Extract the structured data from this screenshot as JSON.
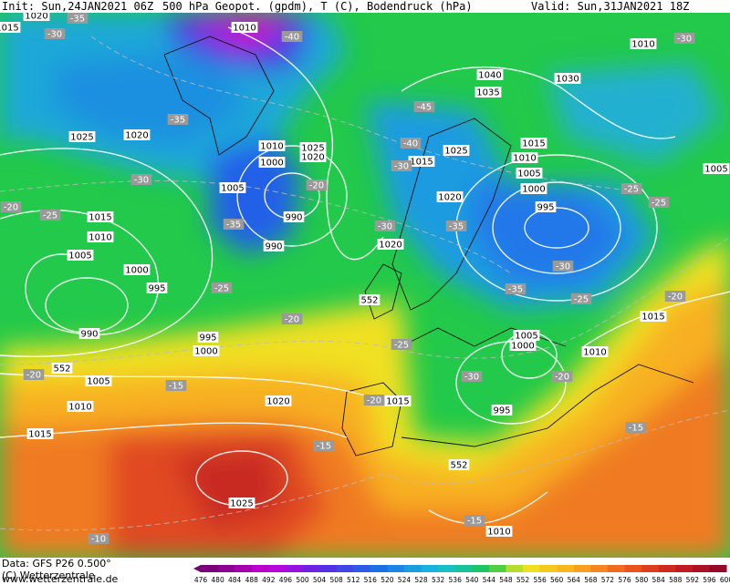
{
  "header": {
    "init": "Init: Sun,24JAN2021 06Z",
    "title": "500 hPa Geopot. (gpdm), T (C), Bodendruck (hPa)",
    "valid": "Valid: Sun,31JAN2021 18Z"
  },
  "footer": {
    "data": "Data: GFS P26 0.500°",
    "copyright": "(C) Wetterzentrale",
    "url": "www.wetterzentrale.de"
  },
  "colorbar": {
    "labels": [
      476,
      480,
      484,
      488,
      492,
      496,
      500,
      504,
      508,
      512,
      516,
      520,
      524,
      528,
      532,
      536,
      540,
      544,
      548,
      552,
      556,
      560,
      564,
      568,
      572,
      576,
      580,
      584,
      588,
      592,
      596,
      600
    ]
  },
  "map": {
    "pressure_labels": [
      1010,
      1010,
      1040,
      1035,
      1030,
      1025,
      1020,
      1010,
      1000,
      1025,
      1020,
      1015,
      1025,
      1015,
      1010,
      1005,
      1000,
      1005,
      990,
      1020,
      995,
      1015,
      1010,
      1005,
      1000,
      995,
      990,
      1020,
      990,
      995,
      1000,
      1005,
      1010,
      1020,
      1015,
      995,
      1005,
      1000,
      1010,
      1015,
      1015,
      1025,
      1010,
      1005,
      1015,
      1020
    ],
    "temperature_labels": [
      -35,
      -30,
      -40,
      -35,
      -30,
      -20,
      -25,
      -35,
      -20,
      -45,
      -40,
      -30,
      -30,
      -35,
      -30,
      -25,
      -25,
      -30,
      -35,
      -25,
      -25,
      -20,
      -20,
      -25,
      -30,
      -20,
      -20,
      -15,
      -20,
      -15,
      -15,
      -15,
      -10
    ],
    "contour_552_labels": [
      552,
      552,
      552
    ]
  }
}
